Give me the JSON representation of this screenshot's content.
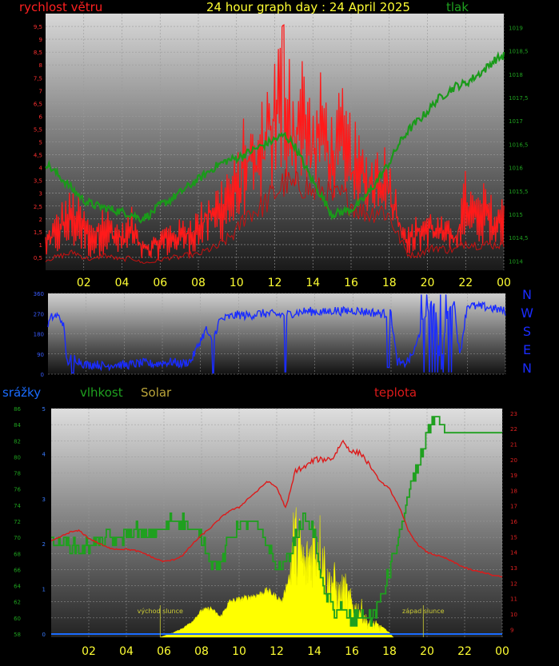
{
  "page": {
    "title": "24 hour graph day : 24 April 2025"
  },
  "colors": {
    "wind": "#ff1a1a",
    "pressure": "#1a9a1a",
    "direction": "#1a2cff",
    "rain": "#1a6cff",
    "humidity": "#1fa01f",
    "solar": "#ffff00",
    "temp": "#dd1a1a",
    "hour_label": "#ffff33",
    "sun_label": "#cccc33"
  },
  "chart_data": [
    {
      "id": "wind_pressure",
      "type": "line",
      "title": "24 hour graph day : 24 April 2025",
      "left_label": "rychlost větru",
      "right_label": "tlak",
      "x_ticks": [
        "02",
        "04",
        "06",
        "08",
        "10",
        "12",
        "14",
        "16",
        "18",
        "20",
        "22",
        "00"
      ],
      "y_left_ticks": [
        "0,5",
        "1",
        "1,5",
        "2",
        "2,5",
        "3",
        "3,5",
        "4",
        "4,5",
        "5",
        "5,5",
        "6",
        "6,5",
        "7",
        "7,5",
        "8",
        "8,5",
        "9",
        "9,5"
      ],
      "y_right_ticks": [
        "1014",
        "1014,5",
        "1015",
        "1015,5",
        "1016",
        "1016,5",
        "1017",
        "1017,5",
        "1018",
        "1018,5",
        "1019"
      ],
      "ylim_left": [
        0,
        10
      ],
      "ylim_right": [
        1013.8,
        1019.3
      ],
      "series": [
        {
          "axis": "left",
          "style": "gust",
          "x": [
            0,
            0.5,
            1,
            1.5,
            2,
            2.5,
            3,
            3.5,
            4,
            4.5,
            5,
            5.5,
            6,
            6.5,
            7,
            7.5,
            8,
            8.5,
            9,
            9.5,
            10,
            10.5,
            11,
            11.5,
            12,
            12.5,
            13,
            13.5,
            14,
            14.5,
            15,
            15.5,
            16,
            16.5,
            17,
            17.5,
            18,
            18.5,
            19,
            19.5,
            20,
            20.5,
            21,
            21.5,
            22,
            22.5,
            23,
            23.5,
            24
          ],
          "values": [
            1.2,
            1.8,
            2.4,
            2.6,
            2.0,
            1.5,
            2.2,
            1.8,
            1.5,
            2.0,
            1.2,
            1.0,
            1.4,
            1.6,
            1.6,
            1.8,
            2.0,
            2.6,
            2.8,
            3.4,
            3.6,
            5.2,
            4.4,
            6.0,
            7.0,
            8.5,
            6.0,
            7.2,
            5.2,
            6.5,
            5.0,
            5.8,
            5.0,
            4.2,
            3.8,
            4.4,
            3.8,
            2.2,
            1.4,
            1.8,
            2.0,
            1.8,
            1.6,
            1.5,
            3.2,
            2.4,
            2.8,
            2.2,
            2.4
          ]
        },
        {
          "axis": "left",
          "style": "avg",
          "x": [
            0,
            0.5,
            1,
            1.5,
            2,
            2.5,
            3,
            3.5,
            4,
            4.5,
            5,
            5.5,
            6,
            6.5,
            7,
            7.5,
            8,
            8.5,
            9,
            9.5,
            10,
            10.5,
            11,
            11.5,
            12,
            12.5,
            13,
            13.5,
            14,
            14.5,
            15,
            15.5,
            16,
            16.5,
            17,
            17.5,
            18,
            18.5,
            19,
            19.5,
            20,
            20.5,
            21,
            21.5,
            22,
            22.5,
            23,
            23.5,
            24
          ],
          "values": [
            0.4,
            0.5,
            0.6,
            0.7,
            0.5,
            0.4,
            0.6,
            0.5,
            0.4,
            0.5,
            0.3,
            0.3,
            0.4,
            0.5,
            0.5,
            0.6,
            0.6,
            0.8,
            0.9,
            1.2,
            1.5,
            2.2,
            2.3,
            2.6,
            3.0,
            3.4,
            3.2,
            3.4,
            3.0,
            3.1,
            2.8,
            2.9,
            2.6,
            2.3,
            2.2,
            2.4,
            2.1,
            1.3,
            0.6,
            0.6,
            0.8,
            0.9,
            0.8,
            0.8,
            1.1,
            1.0,
            1.0,
            1.0,
            1.0
          ]
        },
        {
          "axis": "right",
          "style": "pressure",
          "x": [
            0,
            0.5,
            1,
            1.5,
            2,
            2.5,
            3,
            3.5,
            4,
            4.5,
            5,
            5.5,
            6,
            6.5,
            7,
            7.5,
            8,
            8.5,
            9,
            9.5,
            10,
            10.5,
            11,
            11.5,
            12,
            12.5,
            13,
            13.5,
            14,
            14.5,
            15,
            15.5,
            16,
            16.5,
            17,
            17.5,
            18,
            18.5,
            19,
            19.5,
            20,
            20.5,
            21,
            21.5,
            22,
            22.5,
            23,
            23.5,
            24
          ],
          "values": [
            1016.1,
            1015.9,
            1015.7,
            1015.5,
            1015.3,
            1015.2,
            1015.15,
            1015.1,
            1015.05,
            1015.0,
            1014.9,
            1015.0,
            1015.2,
            1015.3,
            1015.45,
            1015.6,
            1015.75,
            1015.9,
            1016.05,
            1016.15,
            1016.2,
            1016.3,
            1016.4,
            1016.5,
            1016.6,
            1016.7,
            1016.5,
            1016.1,
            1015.7,
            1015.35,
            1015.0,
            1015.05,
            1015.1,
            1015.25,
            1015.5,
            1015.8,
            1016.1,
            1016.5,
            1016.8,
            1017.0,
            1017.2,
            1017.45,
            1017.6,
            1017.75,
            1017.8,
            1017.95,
            1018.1,
            1018.3,
            1018.4
          ]
        }
      ]
    },
    {
      "id": "wind_direction",
      "type": "line",
      "y_ticks": [
        "0",
        "90",
        "180",
        "270",
        "360"
      ],
      "ylim": [
        0,
        360
      ],
      "compass": [
        "N",
        "W",
        "S",
        "E",
        "N"
      ],
      "series": [
        {
          "style": "direction",
          "x": [
            0,
            0.2,
            0.5,
            0.8,
            1,
            1.3,
            1.6,
            2,
            2.5,
            3,
            3.5,
            4,
            4.5,
            5,
            5.5,
            6,
            6.5,
            7,
            7.5,
            8,
            8.3,
            8.6,
            9,
            9.5,
            10,
            10.5,
            11,
            11.5,
            12,
            12.5,
            13,
            13.5,
            14,
            14.5,
            15,
            15.5,
            16,
            16.5,
            17,
            17.5,
            18,
            18.3,
            18.6,
            19,
            19.3,
            19.6,
            20,
            20.3,
            20.6,
            21,
            21.3,
            21.6,
            22,
            22.5,
            23,
            23.5,
            24
          ],
          "values": [
            220,
            255,
            260,
            230,
            50,
            80,
            60,
            40,
            45,
            35,
            45,
            40,
            45,
            50,
            45,
            50,
            55,
            45,
            60,
            150,
            200,
            140,
            240,
            255,
            265,
            260,
            270,
            270,
            265,
            265,
            275,
            280,
            280,
            275,
            285,
            280,
            285,
            280,
            275,
            270,
            270,
            60,
            40,
            70,
            120,
            220,
            300,
            320,
            10,
            300,
            330,
            80,
            310,
            300,
            300,
            290,
            280
          ]
        }
      ]
    },
    {
      "id": "rain_humidity_solar_temp",
      "type": "line",
      "labels": {
        "rain": "srážky",
        "humidity": "vlhkost",
        "solar": "Solar",
        "temp": "teplota"
      },
      "x_ticks": [
        "02",
        "04",
        "06",
        "08",
        "10",
        "12",
        "14",
        "16",
        "18",
        "20",
        "22",
        "00"
      ],
      "y_humidity_ticks": [
        "58",
        "60",
        "62",
        "64",
        "66",
        "68",
        "70",
        "72",
        "74",
        "76",
        "78",
        "80",
        "82",
        "84",
        "86"
      ],
      "ylim_humidity": [
        58,
        86
      ],
      "y_rain_ticks": [
        "0",
        "1",
        "2",
        "3",
        "4",
        "5"
      ],
      "ylim_rain": [
        0,
        5
      ],
      "y_temp_ticks": [
        "9",
        "10",
        "11",
        "12",
        "13",
        "14",
        "15",
        "16",
        "17",
        "18",
        "19",
        "20",
        "21",
        "22",
        "23"
      ],
      "ylim_temp": [
        8.5,
        23.3
      ],
      "ylim_solar": [
        0,
        1000
      ],
      "annotations": {
        "sunrise": "východ slunce",
        "sunset": "západ slunce",
        "sunrise_hour": 5.8,
        "sunset_hour": 19.8
      },
      "series": [
        {
          "style": "solar",
          "x": [
            5.8,
            6.5,
            7,
            7.5,
            8,
            8.5,
            9,
            9.5,
            10,
            10.5,
            11,
            11.5,
            12,
            12.3,
            12.6,
            12.9,
            13.2,
            13.5,
            13.8,
            14.1,
            14.4,
            14.7,
            15,
            15.3,
            15.6,
            15.9,
            16.2,
            16.5,
            16.8,
            17.1,
            17.4,
            17.7,
            18,
            18.2
          ],
          "values": [
            0,
            20,
            40,
            70,
            120,
            130,
            90,
            160,
            170,
            180,
            190,
            210,
            180,
            160,
            260,
            520,
            490,
            360,
            450,
            520,
            480,
            280,
            310,
            220,
            260,
            190,
            150,
            150,
            80,
            70,
            60,
            40,
            20,
            0
          ]
        },
        {
          "style": "humidity",
          "x": [
            0,
            0.5,
            1,
            1.5,
            2,
            2.5,
            3,
            3.5,
            4,
            4.5,
            5,
            5.5,
            6,
            6.5,
            7,
            7.5,
            8,
            8.5,
            9,
            9.5,
            10,
            10.5,
            11,
            11.5,
            12,
            12.5,
            13,
            13.5,
            14,
            14.5,
            15,
            15.5,
            16,
            16.5,
            17,
            17.5,
            18,
            18.5,
            19,
            19.5,
            20,
            20.5,
            21,
            21.5,
            22,
            22.5,
            23,
            23.5,
            24
          ],
          "values": [
            69.5,
            69.5,
            69,
            68.5,
            69,
            69.5,
            70,
            69.5,
            70.5,
            71,
            70,
            70.5,
            71,
            72.5,
            72,
            71,
            70,
            67,
            66.5,
            70,
            71.5,
            72,
            71,
            69,
            66,
            67,
            70,
            72.5,
            70.5,
            63,
            61,
            61,
            59.5,
            60.5,
            60,
            62,
            66,
            70,
            75,
            79,
            83,
            85,
            83,
            83,
            83,
            83,
            83,
            83,
            83
          ]
        },
        {
          "style": "temp",
          "x": [
            0,
            0.5,
            1,
            1.5,
            2,
            2.5,
            3,
            3.5,
            4,
            4.5,
            5,
            5.5,
            6,
            6.5,
            7,
            7.5,
            8,
            8.5,
            9,
            9.5,
            10,
            10.5,
            11,
            11.5,
            12,
            12.5,
            13,
            13.5,
            14,
            14.5,
            15,
            15.5,
            16,
            16.5,
            17,
            17.5,
            18,
            18.5,
            19,
            19.5,
            20,
            20.5,
            21,
            21.5,
            22,
            22.5,
            23,
            23.5,
            24
          ],
          "values": [
            14.7,
            15,
            15.3,
            15.4,
            14.9,
            14.6,
            14.3,
            14.2,
            14.2,
            14.1,
            13.9,
            13.6,
            13.4,
            13.5,
            13.8,
            14.5,
            15.1,
            15.6,
            16.2,
            16.7,
            16.9,
            17.5,
            18,
            18.6,
            18.2,
            16.8,
            19.3,
            19.5,
            20,
            20,
            20.1,
            21.2,
            20.5,
            20.4,
            19.5,
            18.6,
            18.1,
            17,
            15.4,
            14.5,
            14,
            13.8,
            13.6,
            13.3,
            13.0,
            12.8,
            12.7,
            12.5,
            12.4
          ]
        },
        {
          "style": "rain",
          "x": [
            0,
            24
          ],
          "values": [
            0,
            0
          ]
        }
      ]
    }
  ]
}
